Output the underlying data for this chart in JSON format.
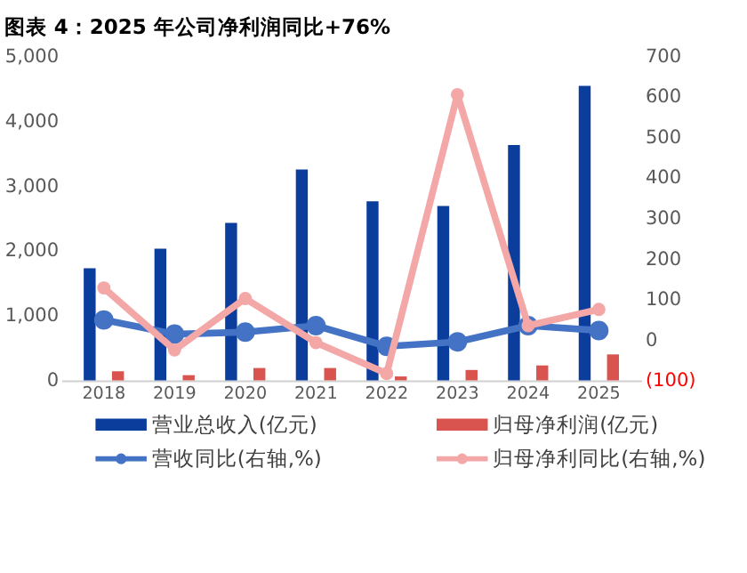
{
  "chart_data": {
    "type": "bar",
    "title": "图表 4：2025 年公司净利润同比+76%",
    "categories": [
      "2018",
      "2019",
      "2020",
      "2021",
      "2022",
      "2023",
      "2024",
      "2025"
    ],
    "series": [
      {
        "name": "营业总收入(亿元)",
        "color": "#0b3d9c",
        "values": [
          1730,
          2030,
          2430,
          3250,
          2760,
          2690,
          3630,
          4540
        ]
      },
      {
        "name": "归母净利润(亿元)",
        "color": "#d9534f",
        "values": [
          140,
          80,
          190,
          190,
          60,
          160,
          230,
          400
        ]
      },
      {
        "name": "营收同比(右轴,%)",
        "type": "line",
        "axis": "y2",
        "color": "#4472c4",
        "values": [
          49,
          14,
          19,
          35,
          -16,
          -5,
          35,
          23
        ]
      },
      {
        "name": "归母净利同比(右轴,%)",
        "type": "line",
        "axis": "y2",
        "color": "#f4a7a7",
        "values": [
          128,
          -25,
          102,
          -7,
          -83,
          605,
          35,
          75
        ]
      }
    ],
    "ylim": [
      0,
      5000
    ],
    "yticks": [
      {
        "value": 0,
        "label": "0"
      },
      {
        "value": 1000,
        "label": "1,000"
      },
      {
        "value": 2000,
        "label": "2,000"
      },
      {
        "value": 3000,
        "label": "3,000"
      },
      {
        "value": 4000,
        "label": "4,000"
      },
      {
        "value": 5000,
        "label": "5,000"
      }
    ],
    "y2lim": [
      -100,
      700
    ],
    "y2ticks": [
      {
        "value": -100,
        "label": "(100)"
      },
      0,
      100,
      200,
      300,
      400,
      500,
      600,
      700
    ],
    "marker": "circle",
    "grid": false,
    "legend": "bottom"
  }
}
